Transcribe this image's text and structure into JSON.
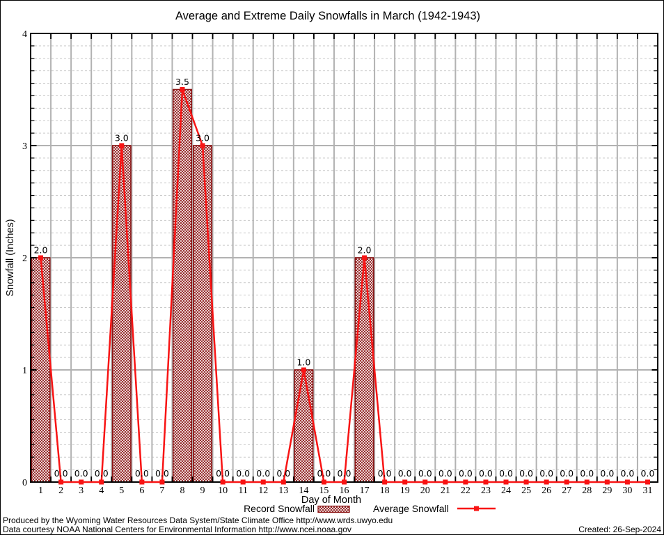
{
  "window": {
    "background": "#ffffff"
  },
  "chart_data": {
    "type": "bar",
    "title": "Average and Extreme Daily Snowfalls in March (1942-1943)",
    "xlabel": "Day of Month",
    "ylabel": "Snowfall (Inches)",
    "x": [
      1,
      2,
      3,
      4,
      5,
      6,
      7,
      8,
      9,
      10,
      11,
      12,
      13,
      14,
      15,
      16,
      17,
      18,
      19,
      20,
      21,
      22,
      23,
      24,
      25,
      26,
      27,
      28,
      29,
      30,
      31
    ],
    "series": [
      {
        "name": "Record Snowfall",
        "type": "bar",
        "values": [
          2.0,
          0,
          0,
          0,
          3.0,
          0,
          0,
          3.5,
          3.0,
          0,
          0,
          0,
          0,
          1.0,
          0,
          0,
          2.0,
          0,
          0,
          0,
          0,
          0,
          0,
          0,
          0,
          0,
          0,
          0,
          0,
          0,
          0
        ]
      },
      {
        "name": "Average Snowfall",
        "type": "line",
        "values": [
          2.0,
          0,
          0,
          0,
          3.0,
          0,
          0,
          3.5,
          3.0,
          0,
          0,
          0,
          0,
          1.0,
          0,
          0,
          2.0,
          0,
          0,
          0,
          0,
          0,
          0,
          0,
          0,
          0,
          0,
          0,
          0,
          0,
          0
        ]
      }
    ],
    "point_labels": [
      "2.0",
      "0.0",
      "0.0",
      "0.0",
      "3.0",
      "0.0",
      "0.0",
      "3.5",
      "3.0",
      "0.0",
      "0.0",
      "0.0",
      "0.0",
      "1.0",
      "0.0",
      "0.0",
      "2.0",
      "0.0",
      "0.0",
      "0.0",
      "0.0",
      "0.0",
      "0.0",
      "0.0",
      "0.0",
      "0.0",
      "0.0",
      "0.0",
      "0.0",
      "0.0",
      "0.0"
    ],
    "ylim": [
      0,
      4
    ],
    "yticks": [
      0,
      1,
      2,
      3,
      4
    ],
    "minor_y_divisions": 9,
    "grid": "on",
    "legend_position": "bottom",
    "colors": {
      "bar": "#8c1616",
      "line": "#f81414",
      "marker": "#f81414",
      "grid_major": "#b2b2b2",
      "grid_minor": "#c9c9c9",
      "axis": "#000000",
      "text": "#000000",
      "background": "#ffffff"
    }
  },
  "footer": {
    "line1": "Produced by the Wyoming Water Resources Data System/State Climate Office http://www.wrds.uwyo.edu",
    "line2": "Data courtesy NOAA National Centers for Environmental Information http://www.ncei.noaa.gov",
    "created": "Created: 26-Sep-2024"
  }
}
